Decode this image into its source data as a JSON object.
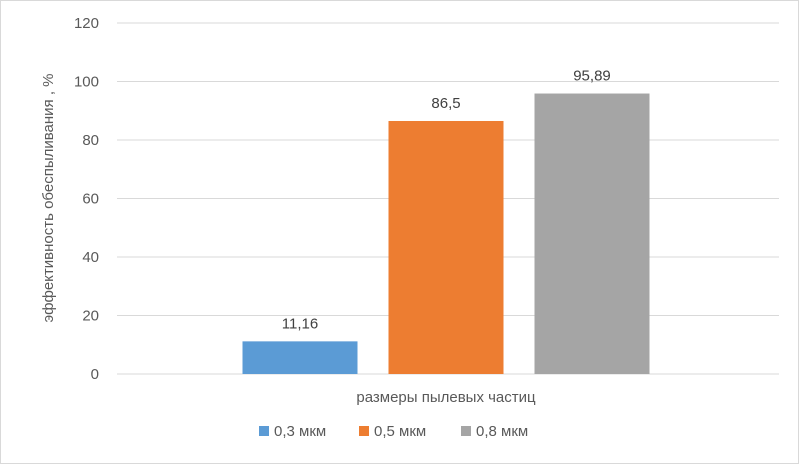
{
  "chart_data": {
    "type": "bar",
    "xlabel": "размеры пылевых частиц",
    "ylabel": "эффективность обеспыливания , %",
    "ylim": [
      0,
      120
    ],
    "yticks": [
      0,
      20,
      40,
      60,
      80,
      100,
      120
    ],
    "grid": true,
    "legend_position": "bottom",
    "series": [
      {
        "name": "0,3 мкм",
        "value": 11.16,
        "label": "11,16",
        "color": "#5b9bd5"
      },
      {
        "name": "0,5 мкм",
        "value": 86.5,
        "label": "86,5",
        "color": "#ed7d31"
      },
      {
        "name": "0,8 мкм",
        "value": 95.89,
        "label": "95,89",
        "color": "#a5a5a5"
      }
    ]
  }
}
